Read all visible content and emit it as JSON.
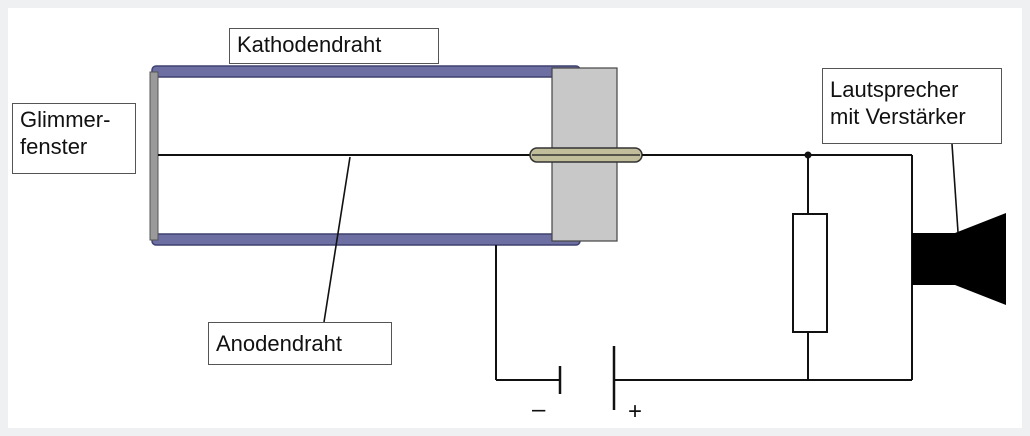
{
  "labels": {
    "cathode_wire": "Kathodendraht",
    "mica_window_line1": "Glimmer-",
    "mica_window_line2": "fenster",
    "anode_wire": "Anodendraht",
    "speaker_line1": "Lautsprecher",
    "speaker_line2": "mit Verstärker"
  },
  "polarity": {
    "minus": "–",
    "plus": "+"
  },
  "colors": {
    "tube_wall": "#6d6fa3",
    "insulator": "#c8c8c8",
    "feedthrough": "#c2bd9a",
    "wire": "#111111",
    "speaker": "#000000"
  }
}
